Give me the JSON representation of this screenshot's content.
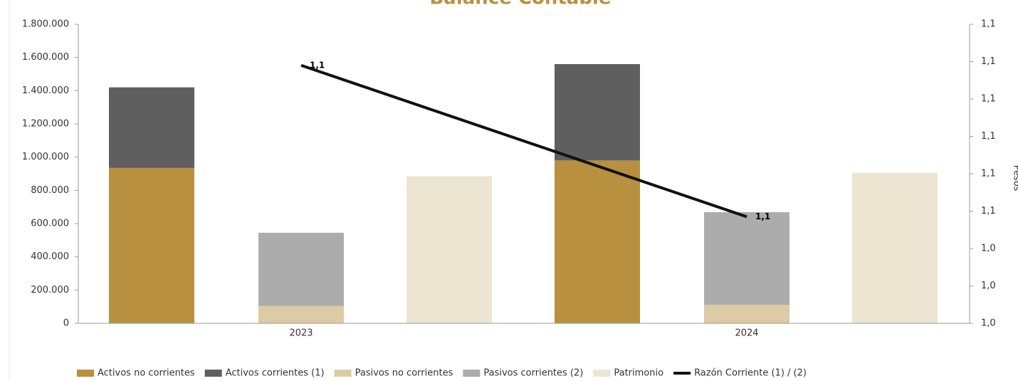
{
  "chart_data": {
    "type": "bar",
    "title": "Balance Contable",
    "y2label": "Pesos",
    "categories": [
      "2023",
      "2024"
    ],
    "ylim": [
      0,
      1800000
    ],
    "yticks": [
      0,
      {
        "value": 200000,
        "label": "200.000"
      },
      {
        "value": 400000,
        "label": "400.000"
      },
      {
        "value": 600000,
        "label": "600.000"
      },
      {
        "value": 800000,
        "label": "800.000"
      },
      {
        "value": 1000000,
        "label": "1.000.000"
      },
      {
        "value": 1200000,
        "label": "1.200.000"
      },
      {
        "value": 1400000,
        "label": "1.400.000"
      },
      {
        "value": 1600000,
        "label": "1.600.000"
      },
      {
        "value": 1800000,
        "label": "1.800.000"
      }
    ],
    "y2lim": [
      1.0,
      1.16
    ],
    "y2ticks": [
      {
        "value": 1.0,
        "label": "1,0"
      },
      {
        "value": 1.02,
        "label": "1,0"
      },
      {
        "value": 1.04,
        "label": "1,0"
      },
      {
        "value": 1.06,
        "label": "1,1"
      },
      {
        "value": 1.08,
        "label": "1,1"
      },
      {
        "value": 1.1,
        "label": "1,1"
      },
      {
        "value": 1.12,
        "label": "1,1"
      },
      {
        "value": 1.14,
        "label": "1,1"
      },
      {
        "value": 1.16,
        "label": "1,1"
      }
    ],
    "series": [
      {
        "name": "Activos no corrientes",
        "color": "#b8903f",
        "stack": 0,
        "values": [
          935000,
          980000
        ]
      },
      {
        "name": "Activos corrientes (1)",
        "color": "#5f5f5f",
        "stack": 0,
        "values": [
          485000,
          580000
        ]
      },
      {
        "name": "Pasivos no corrientes",
        "color": "#dccba4",
        "stack": 1,
        "values": [
          105000,
          111000
        ]
      },
      {
        "name": "Pasivos corrientes (2)",
        "color": "#acacac",
        "stack": 1,
        "values": [
          440000,
          558000
        ]
      },
      {
        "name": "Patrimonio",
        "color": "#ebe5d2",
        "stack": 2,
        "values": [
          885000,
          905000
        ]
      },
      {
        "name": "Razón Corriente (1) / (2)",
        "color": "#111111",
        "type": "line",
        "axis": "y2",
        "values": [
          1.138,
          1.057
        ],
        "value_labels": [
          "1,1",
          "1,1"
        ]
      }
    ]
  }
}
